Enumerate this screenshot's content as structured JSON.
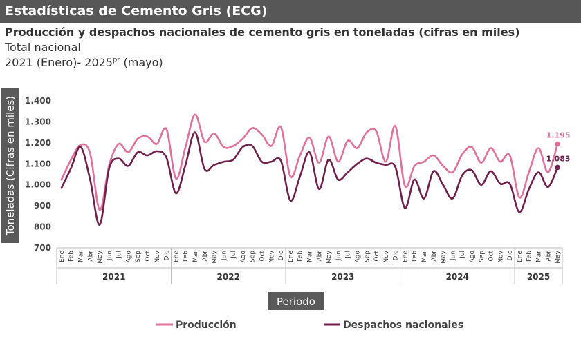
{
  "banner": {
    "title": "Estadísticas de Cemento Gris (ECG)"
  },
  "chart_data": {
    "type": "line",
    "title": "Producción y despachos nacionales de cemento gris en toneladas (cifras en miles)",
    "subtitle": "Total nacional",
    "period_prefix": "2021 (Enero)- 2025",
    "period_sup": "pr",
    "period_suffix": " (mayo)",
    "xlabel": "Periodo",
    "ylabel": "Toneladas (Cifras en miles)",
    "ylim": [
      700,
      1400
    ],
    "yticks": [
      700,
      800,
      900,
      1000,
      1100,
      1200,
      1300,
      1400
    ],
    "ytick_labels": [
      "700",
      "800",
      "900",
      "1.000",
      "1.100",
      "1.200",
      "1.300",
      "1.400"
    ],
    "months": [
      "Ene",
      "Feb",
      "Mar",
      "Abr",
      "May",
      "Jun",
      "Jul",
      "Ago",
      "Sep",
      "Oct",
      "Nov",
      "Dic",
      "Ene",
      "Feb",
      "Mar",
      "Abr",
      "May",
      "Jun",
      "Jul",
      "Ago",
      "Sep",
      "Oct",
      "Nov",
      "Dic",
      "Ene",
      "Feb",
      "Mar",
      "Abr",
      "May",
      "Jun",
      "Jul",
      "Ago",
      "Sep",
      "Oct",
      "Nov",
      "Dic",
      "Ene",
      "Feb",
      "Mar",
      "Abr",
      "May",
      "Jun",
      "Jul",
      "Ago",
      "Sep",
      "Oct",
      "Nov",
      "Dic",
      "Ene",
      "Feb",
      "Mar",
      "Abr",
      "May"
    ],
    "years": [
      {
        "label": "2021",
        "months": 12
      },
      {
        "label": "2022",
        "months": 12
      },
      {
        "label": "2023",
        "months": 12
      },
      {
        "label": "2024",
        "months": 12
      },
      {
        "label": "2025",
        "months": 5
      }
    ],
    "series": [
      {
        "name": "Producción",
        "color": "#e0709c",
        "values": [
          1025,
          1120,
          1190,
          1150,
          880,
          1095,
          1195,
          1155,
          1220,
          1230,
          1195,
          1265,
          1030,
          1180,
          1335,
          1205,
          1245,
          1180,
          1185,
          1220,
          1270,
          1240,
          1185,
          1275,
          1040,
          1140,
          1225,
          1105,
          1230,
          1110,
          1210,
          1175,
          1250,
          1255,
          1110,
          1280,
          995,
          1090,
          1110,
          1140,
          1090,
          1060,
          1145,
          1180,
          1105,
          1175,
          1110,
          1140,
          940,
          1060,
          1175,
          1060,
          1195
        ],
        "last_label": "1.195"
      },
      {
        "name": "Despachos nacionales",
        "color": "#701f4d",
        "values": [
          985,
          1080,
          1180,
          1025,
          810,
          1080,
          1125,
          1090,
          1155,
          1140,
          1160,
          1130,
          960,
          1095,
          1250,
          1075,
          1095,
          1110,
          1120,
          1180,
          1185,
          1110,
          1110,
          1115,
          925,
          1040,
          1155,
          980,
          1120,
          1025,
          1060,
          1100,
          1125,
          1105,
          1095,
          1085,
          890,
          1025,
          935,
          1065,
          1000,
          935,
          1045,
          1070,
          1000,
          1065,
          1005,
          1005,
          870,
          980,
          1060,
          990,
          1083
        ],
        "last_label": "1.083"
      }
    ],
    "legend_position": "bottom",
    "grid": false
  }
}
